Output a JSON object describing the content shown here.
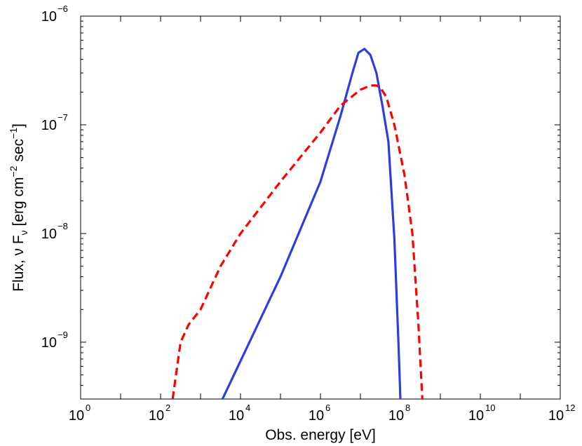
{
  "chart_data": {
    "type": "line",
    "title": "",
    "xlabel": "Obs. energy [eV]",
    "ylabel": "Flux, ν F_ν [erg cm^-2 sec^-1]",
    "ylabel_parts": {
      "base": "Flux, ν F",
      "sub": "ν",
      "mid1": " [erg cm",
      "sup1": "−2",
      "mid2": " sec",
      "sup2": "−1",
      "end": "]"
    },
    "xscale": "log",
    "yscale": "log",
    "xlim": [
      1,
      1000000000000.0
    ],
    "ylim": [
      3e-10,
      1e-06
    ],
    "x_ticks": [
      {
        "value": 1,
        "base": "10",
        "exp": "0"
      },
      {
        "value": 100,
        "base": "10",
        "exp": "2"
      },
      {
        "value": 10000,
        "base": "10",
        "exp": "4"
      },
      {
        "value": 1000000,
        "base": "10",
        "exp": "6"
      },
      {
        "value": 100000000,
        "base": "10",
        "exp": "8"
      },
      {
        "value": 10000000000,
        "base": "10",
        "exp": "10"
      },
      {
        "value": 1000000000000,
        "base": "10",
        "exp": "12"
      }
    ],
    "y_ticks": [
      {
        "value": 1e-09,
        "base": "10",
        "exp": "−9"
      },
      {
        "value": 1e-08,
        "base": "10",
        "exp": "−8"
      },
      {
        "value": 1e-07,
        "base": "10",
        "exp": "−7"
      },
      {
        "value": 1e-06,
        "base": "10",
        "exp": "−6"
      }
    ],
    "grid": false,
    "legend": "none",
    "series": [
      {
        "name": "solid",
        "color": "#2b3fe0",
        "dash": "solid",
        "x": [
          3548,
          100000,
          1000000,
          3162278,
          6309573,
          8912509,
          12589254,
          17782794,
          25118864,
          35481339,
          50118723,
          70794578,
          89125094,
          100000000
        ],
        "y": [
          3e-10,
          4e-09,
          3e-08,
          1.2e-07,
          3e-07,
          4.6e-07,
          5e-07,
          4.4e-07,
          3e-07,
          1.5e-07,
          7e-08,
          9e-09,
          1e-09,
          3e-10
        ]
      },
      {
        "name": "dashed",
        "color": "#ff0000",
        "dash": "dashed",
        "x": [
          200,
          316,
          501,
          1000,
          3162,
          10000,
          100000,
          1000000,
          3162278,
          10000000,
          17782794,
          25118864,
          31622777,
          44668359,
          70794578,
          125892541,
          199526231,
          281838293,
          354813389
        ],
        "y": [
          3e-10,
          1e-09,
          1.45e-09,
          2e-09,
          5e-09,
          1e-08,
          3e-08,
          8.5e-08,
          1.5e-07,
          2.1e-07,
          2.3e-07,
          2.3e-07,
          2.2e-07,
          1.8e-07,
          1e-07,
          3.5e-08,
          1e-08,
          1.5e-09,
          3e-10
        ]
      }
    ]
  }
}
